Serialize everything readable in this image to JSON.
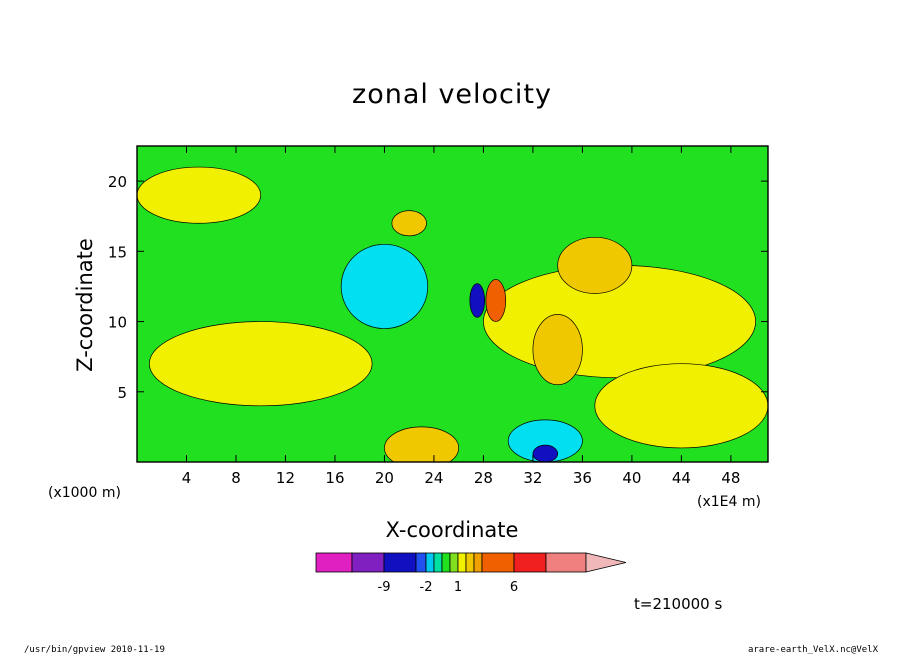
{
  "chart_data": {
    "type": "heatmap",
    "title": "zonal velocity",
    "xlabel": "X-coordinate",
    "ylabel": "Z-coordinate",
    "x_unit": "(x1E4 m)",
    "y_unit": "(x1000 m)",
    "xlim": [
      0,
      51
    ],
    "ylim": [
      0,
      22.5
    ],
    "x_ticks": [
      4,
      8,
      12,
      16,
      20,
      24,
      28,
      32,
      36,
      40,
      44,
      48
    ],
    "y_ticks": [
      5,
      10,
      15,
      20
    ],
    "colorbar": {
      "colors": [
        "#e020c0",
        "#8020c0",
        "#1010c0",
        "#2050f0",
        "#00c8f0",
        "#00e0a0",
        "#20e020",
        "#80e020",
        "#f0f000",
        "#f0c800",
        "#f0a000",
        "#f06000",
        "#f02020",
        "#f08080",
        "#f0b8b8"
      ],
      "tick_labels": [
        "-9",
        "-2",
        "1",
        "6"
      ]
    },
    "annotation": "t=210000 s",
    "regions": [
      {
        "value": 1,
        "color": "#f0f000",
        "cx": 5,
        "cz": 19,
        "rx": 5,
        "rz": 2
      },
      {
        "value": 1,
        "color": "#f0f000",
        "cx": 10,
        "cz": 7,
        "rx": 9,
        "rz": 3
      },
      {
        "value": 1,
        "color": "#f0f000",
        "cx": 39,
        "cz": 10,
        "rx": 11,
        "rz": 4
      },
      {
        "value": 1,
        "color": "#f0f000",
        "cx": 44,
        "cz": 4,
        "rx": 7,
        "rz": 3
      },
      {
        "value": 3,
        "color": "#f0c800",
        "cx": 37,
        "cz": 14,
        "rx": 3,
        "rz": 2
      },
      {
        "value": 3,
        "color": "#f0c800",
        "cx": 34,
        "cz": 8,
        "rx": 2,
        "rz": 2.5
      },
      {
        "value": 3,
        "color": "#f0c800",
        "cx": 23,
        "cz": 1,
        "rx": 3,
        "rz": 1.5
      },
      {
        "value": 3,
        "color": "#f0c800",
        "cx": 22,
        "cz": 17,
        "rx": 1.4,
        "rz": 0.9
      },
      {
        "value": -1,
        "color": "#00e0f0",
        "cx": 20,
        "cz": 12.5,
        "rx": 3.5,
        "rz": 3
      },
      {
        "value": -1,
        "color": "#00e0f0",
        "cx": 33,
        "cz": 1.5,
        "rx": 3,
        "rz": 1.5
      },
      {
        "value": -3,
        "color": "#1010c0",
        "cx": 33,
        "cz": 0.6,
        "rx": 1,
        "rz": 0.6
      },
      {
        "value": -3,
        "color": "#1010c0",
        "cx": 27.5,
        "cz": 11.5,
        "rx": 0.6,
        "rz": 1.2
      },
      {
        "value": 5,
        "color": "#f06000",
        "cx": 29,
        "cz": 11.5,
        "rx": 0.8,
        "rz": 1.5
      }
    ]
  },
  "footer": {
    "left": "/usr/bin/gpview   2010-11-19",
    "right": "arare-earth_VelX.nc@VelX"
  }
}
